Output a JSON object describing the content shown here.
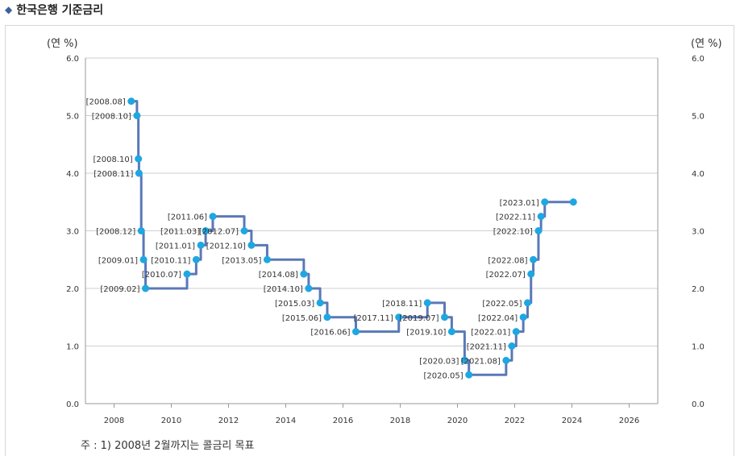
{
  "header": {
    "title": "한국은행 기준금리",
    "icon": "diamond-icon"
  },
  "note": "주 : 1) 2008년 2월까지는 콜금리 목표",
  "chart_data": {
    "type": "line",
    "title": "한국은행 기준금리",
    "ylabel_left": "(연 %)",
    "ylabel_right": "(연 %)",
    "xlim": [
      2007,
      2027
    ],
    "ylim": [
      0,
      6
    ],
    "x_ticks": [
      "2008",
      "2010",
      "2012",
      "2014",
      "2016",
      "2018",
      "2020",
      "2022",
      "2024",
      "2026"
    ],
    "y_ticks": [
      "0.0",
      "1.0",
      "2.0",
      "3.0",
      "4.0",
      "5.0",
      "6.0"
    ],
    "grid": true,
    "line_color": "#5b78b8",
    "marker_color": "#1ea7e1",
    "points": [
      {
        "x": 2008.6,
        "y": 5.25,
        "label": "[2008.08]"
      },
      {
        "x": 2008.8,
        "y": 5.0,
        "label": "[2008.10]"
      },
      {
        "x": 2008.85,
        "y": 4.25,
        "label": "[2008.10]"
      },
      {
        "x": 2008.87,
        "y": 4.0,
        "label": "[2008.11]"
      },
      {
        "x": 2008.95,
        "y": 3.0,
        "label": "[2008.12]"
      },
      {
        "x": 2009.03,
        "y": 2.5,
        "label": "[2009.01]"
      },
      {
        "x": 2009.1,
        "y": 2.0,
        "label": "[2009.02]"
      },
      {
        "x": 2010.55,
        "y": 2.25,
        "label": "[2010.07]"
      },
      {
        "x": 2010.87,
        "y": 2.5,
        "label": "[2010.11]"
      },
      {
        "x": 2011.03,
        "y": 2.75,
        "label": "[2011.01]"
      },
      {
        "x": 2011.2,
        "y": 3.0,
        "label": "[2011.03]"
      },
      {
        "x": 2011.45,
        "y": 3.25,
        "label": "[2011.06]"
      },
      {
        "x": 2012.55,
        "y": 3.0,
        "label": "[2012.07]"
      },
      {
        "x": 2012.8,
        "y": 2.75,
        "label": "[2012.10]"
      },
      {
        "x": 2013.35,
        "y": 2.5,
        "label": "[2013.05]"
      },
      {
        "x": 2014.63,
        "y": 2.25,
        "label": "[2014.08]"
      },
      {
        "x": 2014.8,
        "y": 2.0,
        "label": "[2014.10]"
      },
      {
        "x": 2015.2,
        "y": 1.75,
        "label": "[2015.03]"
      },
      {
        "x": 2015.45,
        "y": 1.5,
        "label": "[2015.06]"
      },
      {
        "x": 2016.45,
        "y": 1.25,
        "label": "[2016.06]"
      },
      {
        "x": 2017.95,
        "y": 1.5,
        "label": "[2017.11]"
      },
      {
        "x": 2018.95,
        "y": 1.75,
        "label": "[2018.11]"
      },
      {
        "x": 2019.55,
        "y": 1.5,
        "label": "[2019.07]"
      },
      {
        "x": 2019.8,
        "y": 1.25,
        "label": "[2019.10]"
      },
      {
        "x": 2020.25,
        "y": 0.75,
        "label": "[2020.03]"
      },
      {
        "x": 2020.4,
        "y": 0.5,
        "label": "[2020.05]"
      },
      {
        "x": 2021.7,
        "y": 0.75,
        "label": "[2021.08]"
      },
      {
        "x": 2021.9,
        "y": 1.0,
        "label": "[2021.11]"
      },
      {
        "x": 2022.05,
        "y": 1.25,
        "label": "[2022.01]"
      },
      {
        "x": 2022.3,
        "y": 1.5,
        "label": "[2022.04]"
      },
      {
        "x": 2022.45,
        "y": 1.75,
        "label": "[2022.05]"
      },
      {
        "x": 2022.57,
        "y": 2.25,
        "label": "[2022.07]"
      },
      {
        "x": 2022.65,
        "y": 2.5,
        "label": "[2022.08]"
      },
      {
        "x": 2022.83,
        "y": 3.0,
        "label": "[2022.10]"
      },
      {
        "x": 2022.92,
        "y": 3.25,
        "label": "[2022.11]"
      },
      {
        "x": 2023.05,
        "y": 3.5,
        "label": "[2023.01]"
      },
      {
        "x": 2024.05,
        "y": 3.5,
        "label": ""
      }
    ]
  }
}
